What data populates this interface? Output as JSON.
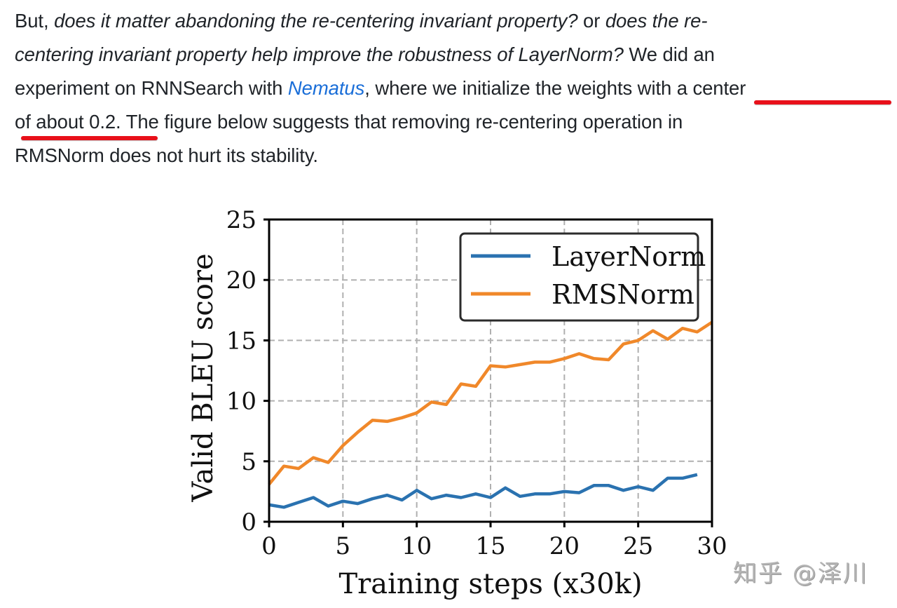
{
  "paragraph": {
    "line1": {
      "prefix": "But, ",
      "italic1": "does it matter abandoning the re-centering invariant property?",
      "mid": " or ",
      "italic2": "does the re-"
    },
    "line2": {
      "italic": "centering invariant property help improve the robustness of LayerNorm?",
      "suffix": " We did an"
    },
    "line3": {
      "prefix": "experiment on RNNSearch with ",
      "link": "Nematus",
      "suffix": ", where we initialize the weights with a center"
    },
    "line4": {
      "text": "of about 0.2. The figure below suggests that removing re-centering operation in"
    },
    "line5": {
      "text": "RMSNorm does not hurt its stability."
    },
    "highlight_color": "#e8101a",
    "link_color": "#1a6ed8"
  },
  "watermark": "知乎 @泽川",
  "chart_data": {
    "type": "line",
    "title": "",
    "xlabel": "Training steps (x30k)",
    "ylabel": "Valid BLEU score",
    "xlim": [
      0,
      30
    ],
    "ylim": [
      0,
      25
    ],
    "xticks": [
      "0",
      "5",
      "10",
      "15",
      "20",
      "25",
      "30"
    ],
    "yticks": [
      "0",
      "5",
      "10",
      "15",
      "20",
      "25"
    ],
    "grid": true,
    "legend_position": "upper right",
    "series": [
      {
        "name": "LayerNorm",
        "color": "#2a72b0",
        "x": [
          0,
          1,
          2,
          3,
          4,
          5,
          6,
          7,
          8,
          9,
          10,
          11,
          12,
          13,
          14,
          15,
          16,
          17,
          18,
          19,
          20,
          21,
          22,
          23,
          24,
          25,
          26,
          27,
          28,
          29
        ],
        "values": [
          1.4,
          1.2,
          1.6,
          2.0,
          1.3,
          1.7,
          1.5,
          1.9,
          2.2,
          1.8,
          2.6,
          1.9,
          2.2,
          2.0,
          2.3,
          2.0,
          2.8,
          2.1,
          2.3,
          2.3,
          2.5,
          2.4,
          3.0,
          3.0,
          2.6,
          2.9,
          2.6,
          3.6,
          3.6,
          3.9
        ]
      },
      {
        "name": "RMSNorm",
        "color": "#f0882a",
        "x": [
          0,
          1,
          2,
          3,
          4,
          5,
          6,
          7,
          8,
          9,
          10,
          11,
          12,
          13,
          14,
          15,
          16,
          17,
          18,
          19,
          20,
          21,
          22,
          23,
          24,
          25,
          26,
          27,
          28,
          29,
          30
        ],
        "values": [
          3.1,
          4.6,
          4.4,
          5.3,
          4.9,
          6.3,
          7.4,
          8.4,
          8.3,
          8.6,
          9.0,
          9.9,
          9.7,
          11.4,
          11.2,
          12.9,
          12.8,
          13.0,
          13.2,
          13.2,
          13.5,
          13.9,
          13.5,
          13.4,
          14.7,
          15.0,
          15.8,
          15.1,
          16.0,
          15.7,
          16.5
        ]
      }
    ]
  }
}
